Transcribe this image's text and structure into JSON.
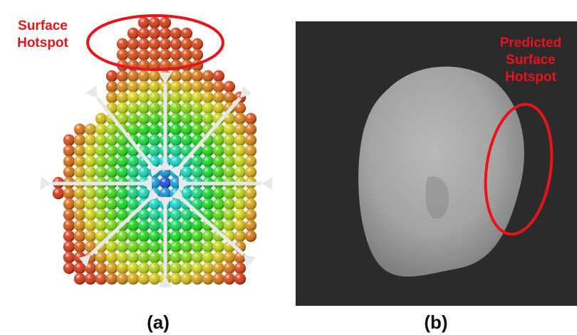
{
  "panels": [
    {
      "label": "(a)",
      "annotation_lines": [
        "Surface",
        "Hotspot"
      ]
    },
    {
      "label": "(b)",
      "annotation_lines": [
        "Predicted",
        "Surface",
        "Hotspot"
      ]
    }
  ]
}
